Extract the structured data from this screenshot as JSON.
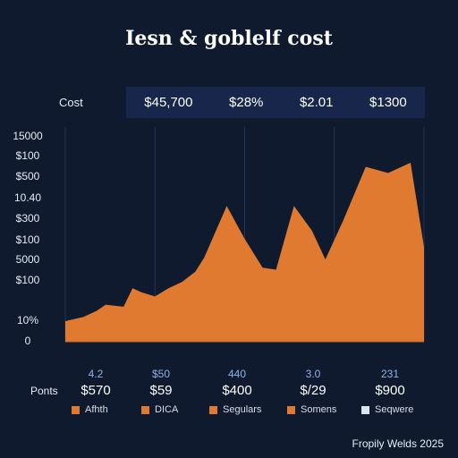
{
  "title": "Iesn & goblelf cost",
  "cost_header": {
    "label": "Cost",
    "values": [
      "$45,700",
      "$28%",
      "$2.01",
      "$1300"
    ]
  },
  "chart_data": {
    "type": "area",
    "title": "Iesn & goblelf cost",
    "y_tick_labels": [
      "15000",
      "$100",
      "$500",
      "10.40",
      "$300",
      "$100",
      "5000",
      "$100",
      "10%",
      "0"
    ],
    "x_tick_labels": [
      "4.2",
      "$50",
      "440",
      "3.0",
      "231"
    ],
    "ylim": [
      0,
      10
    ],
    "series": [
      {
        "color": "#e07a30",
        "x": [
          0,
          0.2,
          0.35,
          0.45,
          0.65,
          0.75,
          0.85,
          1.0,
          1.15,
          1.3,
          1.45,
          1.55,
          1.7,
          1.8,
          2.0,
          2.2,
          2.35,
          2.55,
          2.75,
          2.9,
          3.1,
          3.35,
          3.6,
          3.85,
          4.0
        ],
        "values": [
          1.0,
          1.2,
          1.5,
          1.8,
          1.7,
          2.6,
          2.4,
          2.2,
          2.6,
          2.9,
          3.4,
          4.1,
          5.6,
          6.6,
          5.0,
          3.6,
          3.5,
          6.6,
          5.4,
          4.0,
          5.9,
          8.5,
          8.2,
          8.7,
          4.6
        ]
      }
    ],
    "grid": true
  },
  "points_row": {
    "label": "Ponts",
    "values": [
      "$570",
      "$59",
      "$400",
      "$/29",
      "$900"
    ]
  },
  "legend": [
    {
      "label": "Afhth",
      "color": "#e07a30"
    },
    {
      "label": "DICA",
      "color": "#e07a30"
    },
    {
      "label": "Segulars",
      "color": "#e07a30"
    },
    {
      "label": "Somens",
      "color": "#e07a30"
    },
    {
      "label": "Seqwere",
      "color": "#d8e6f0"
    }
  ],
  "footer": "Fropily Welds 2025"
}
